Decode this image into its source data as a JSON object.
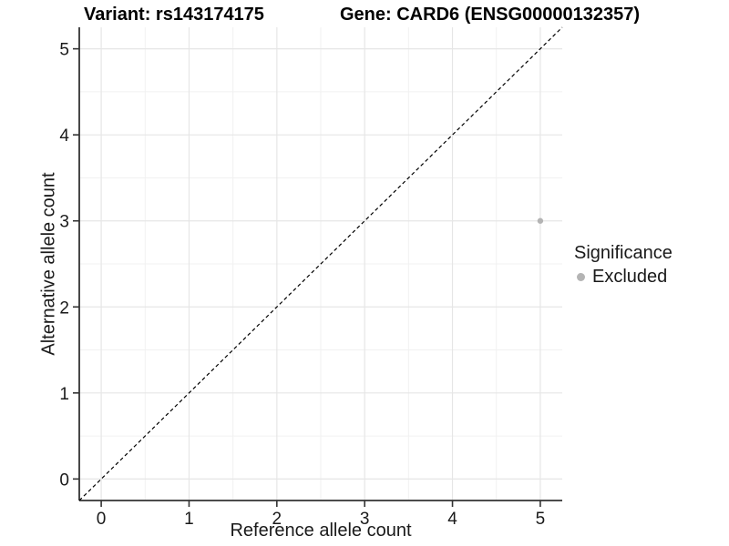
{
  "titles": {
    "variant": "Variant: rs143174175",
    "gene": "Gene: CARD6 (ENSG00000132357)"
  },
  "chart_data": {
    "type": "scatter",
    "title_left": "Variant: rs143174175",
    "title_right": "Gene: CARD6 (ENSG00000132357)",
    "xlabel": "Reference allele count",
    "ylabel": "Alternative allele count",
    "xlim": [
      -0.25,
      5.25
    ],
    "ylim": [
      -0.25,
      5.25
    ],
    "xticks": [
      0,
      1,
      2,
      3,
      4,
      5
    ],
    "yticks": [
      0,
      1,
      2,
      3,
      4,
      5
    ],
    "minor_grid_step": 0.5,
    "grid": true,
    "legend_position": "right",
    "reference_line": {
      "type": "abline",
      "slope": 1,
      "intercept": 0,
      "style": "dashed",
      "color": "#000000"
    },
    "series": [
      {
        "name": "Excluded",
        "color": "#b4b4b4",
        "points": [
          {
            "x": 5,
            "y": 3
          }
        ]
      }
    ],
    "legend": {
      "title": "Significance",
      "items": [
        {
          "label": "Excluded",
          "color": "#b4b4b4",
          "marker": "circle"
        }
      ]
    }
  },
  "colors": {
    "background": "#ffffff",
    "grid_major": "#e6e6e6",
    "grid_minor": "#f1f1f1",
    "axis_line": "#333333",
    "tick_text": "#1a1a1a",
    "point": "#b4b4b4",
    "reference_line": "#000000"
  }
}
